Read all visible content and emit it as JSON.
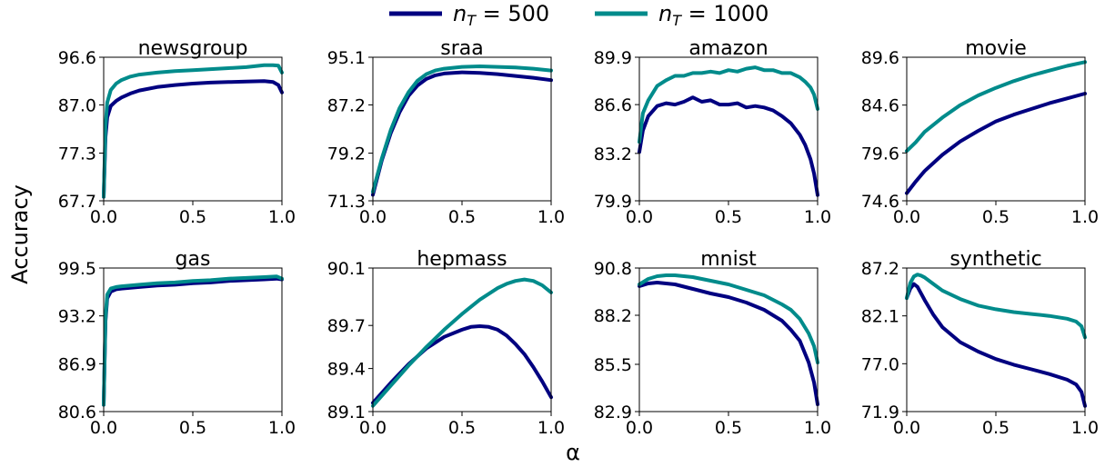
{
  "figure": {
    "ylabel": "Accuracy",
    "xlabel": "α",
    "legend": {
      "placement": "top-center",
      "entries": [
        {
          "prefix": "n",
          "sub": "T",
          "suffix": " = 500"
        },
        {
          "prefix": "n",
          "sub": "T",
          "suffix": " = 1000"
        }
      ]
    },
    "colors": {
      "n500": "#000080",
      "n1000": "#008b8b"
    }
  },
  "chart_data": [
    {
      "type": "line",
      "title": "newsgroup",
      "xlim": [
        0,
        1
      ],
      "ylim": [
        67.7,
        96.6
      ],
      "xticks": [
        "0.0",
        "0.5",
        "1.0"
      ],
      "yticks": [
        "67.7",
        "77.3",
        "87.0",
        "96.6"
      ],
      "series": [
        {
          "name": "n_T = 500",
          "color": "#000080",
          "x": [
            0,
            0.01,
            0.02,
            0.04,
            0.07,
            0.1,
            0.15,
            0.2,
            0.3,
            0.4,
            0.5,
            0.6,
            0.7,
            0.8,
            0.9,
            0.95,
            0.98,
            1.0
          ],
          "y": [
            68.5,
            80.5,
            84.5,
            86.8,
            87.8,
            88.5,
            89.3,
            89.9,
            90.6,
            91.0,
            91.3,
            91.5,
            91.6,
            91.7,
            91.8,
            91.6,
            91.0,
            89.5
          ]
        },
        {
          "name": "n_T = 1000",
          "color": "#008b8b",
          "x": [
            0,
            0.01,
            0.02,
            0.04,
            0.07,
            0.1,
            0.15,
            0.2,
            0.3,
            0.4,
            0.5,
            0.6,
            0.7,
            0.8,
            0.9,
            0.95,
            0.98,
            1.0
          ],
          "y": [
            68.5,
            82.5,
            87.5,
            90.0,
            91.3,
            92.0,
            92.7,
            93.1,
            93.5,
            93.8,
            94.0,
            94.2,
            94.4,
            94.6,
            95.0,
            95.0,
            94.9,
            93.5
          ]
        }
      ]
    },
    {
      "type": "line",
      "title": "sraa",
      "xlim": [
        0,
        1
      ],
      "ylim": [
        71.3,
        95.1
      ],
      "xticks": [
        "0.0",
        "0.5",
        "1.0"
      ],
      "yticks": [
        "71.3",
        "79.2",
        "87.2",
        "95.1"
      ],
      "series": [
        {
          "name": "n_T = 500",
          "color": "#000080",
          "x": [
            0,
            0.05,
            0.1,
            0.15,
            0.2,
            0.25,
            0.3,
            0.35,
            0.4,
            0.5,
            0.6,
            0.7,
            0.8,
            0.9,
            1.0
          ],
          "y": [
            72.3,
            78.0,
            82.5,
            86.0,
            88.7,
            90.4,
            91.5,
            92.1,
            92.4,
            92.6,
            92.5,
            92.3,
            92.0,
            91.7,
            91.3
          ]
        },
        {
          "name": "n_T = 1000",
          "color": "#008b8b",
          "x": [
            0,
            0.05,
            0.1,
            0.15,
            0.2,
            0.25,
            0.3,
            0.35,
            0.4,
            0.5,
            0.6,
            0.7,
            0.8,
            0.9,
            1.0
          ],
          "y": [
            72.8,
            78.3,
            83.0,
            86.7,
            89.3,
            91.2,
            92.3,
            92.9,
            93.2,
            93.5,
            93.6,
            93.5,
            93.4,
            93.2,
            92.9
          ]
        }
      ]
    },
    {
      "type": "line",
      "title": "amazon",
      "xlim": [
        0,
        1
      ],
      "ylim": [
        79.9,
        89.9
      ],
      "xticks": [
        "0.0",
        "0.5",
        "1.0"
      ],
      "yticks": [
        "79.9",
        "83.2",
        "86.6",
        "89.9"
      ],
      "series": [
        {
          "name": "n_T = 500",
          "color": "#000080",
          "x": [
            0,
            0.02,
            0.05,
            0.1,
            0.15,
            0.2,
            0.25,
            0.3,
            0.35,
            0.4,
            0.45,
            0.5,
            0.55,
            0.6,
            0.65,
            0.7,
            0.75,
            0.8,
            0.85,
            0.9,
            0.93,
            0.96,
            0.98,
            1.0
          ],
          "y": [
            83.3,
            84.8,
            85.8,
            86.5,
            86.7,
            86.6,
            86.8,
            87.1,
            86.8,
            86.9,
            86.6,
            86.6,
            86.7,
            86.4,
            86.5,
            86.4,
            86.2,
            85.8,
            85.3,
            84.5,
            83.8,
            82.8,
            81.8,
            80.3
          ]
        },
        {
          "name": "n_T = 1000",
          "color": "#008b8b",
          "x": [
            0,
            0.02,
            0.05,
            0.1,
            0.15,
            0.2,
            0.25,
            0.3,
            0.35,
            0.4,
            0.45,
            0.5,
            0.55,
            0.6,
            0.65,
            0.7,
            0.75,
            0.8,
            0.85,
            0.9,
            0.93,
            0.96,
            0.98,
            1.0
          ],
          "y": [
            84.0,
            86.0,
            86.9,
            87.9,
            88.3,
            88.6,
            88.6,
            88.8,
            88.8,
            88.9,
            88.8,
            89.0,
            88.9,
            89.1,
            89.2,
            89.0,
            89.0,
            88.8,
            88.8,
            88.5,
            88.2,
            87.8,
            87.3,
            86.3
          ]
        }
      ]
    },
    {
      "type": "line",
      "title": "movie",
      "xlim": [
        0,
        1
      ],
      "ylim": [
        74.6,
        89.6
      ],
      "xticks": [
        "0.0",
        "0.5",
        "1.0"
      ],
      "yticks": [
        "74.6",
        "79.6",
        "84.6",
        "89.6"
      ],
      "series": [
        {
          "name": "n_T = 500",
          "color": "#000080",
          "x": [
            0,
            0.05,
            0.1,
            0.2,
            0.3,
            0.4,
            0.5,
            0.6,
            0.7,
            0.8,
            0.9,
            1.0
          ],
          "y": [
            75.4,
            76.6,
            77.7,
            79.4,
            80.8,
            81.9,
            82.9,
            83.6,
            84.2,
            84.8,
            85.3,
            85.8
          ]
        },
        {
          "name": "n_T = 1000",
          "color": "#008b8b",
          "x": [
            0,
            0.05,
            0.1,
            0.2,
            0.3,
            0.4,
            0.5,
            0.6,
            0.7,
            0.8,
            0.9,
            1.0
          ],
          "y": [
            79.8,
            80.7,
            81.8,
            83.3,
            84.6,
            85.6,
            86.4,
            87.1,
            87.7,
            88.2,
            88.7,
            89.1
          ]
        }
      ]
    },
    {
      "type": "line",
      "title": "gas",
      "xlim": [
        0,
        1
      ],
      "ylim": [
        80.6,
        99.5
      ],
      "xticks": [
        "0.0",
        "0.5",
        "1.0"
      ],
      "yticks": [
        "80.6",
        "86.9",
        "93.2",
        "99.5"
      ],
      "series": [
        {
          "name": "n_T = 500",
          "color": "#000080",
          "x": [
            0,
            0.01,
            0.02,
            0.04,
            0.07,
            0.1,
            0.2,
            0.3,
            0.4,
            0.5,
            0.6,
            0.7,
            0.8,
            0.9,
            0.97,
            1.0
          ],
          "y": [
            81.5,
            92.5,
            95.5,
            96.4,
            96.7,
            96.8,
            97.0,
            97.2,
            97.3,
            97.5,
            97.6,
            97.8,
            97.9,
            98.0,
            98.1,
            98.0
          ]
        },
        {
          "name": "n_T = 1000",
          "color": "#008b8b",
          "x": [
            0,
            0.01,
            0.02,
            0.04,
            0.07,
            0.1,
            0.2,
            0.3,
            0.4,
            0.5,
            0.6,
            0.7,
            0.8,
            0.9,
            0.97,
            1.0
          ],
          "y": [
            81.5,
            93.0,
            96.0,
            96.8,
            97.0,
            97.1,
            97.3,
            97.5,
            97.6,
            97.8,
            97.9,
            98.1,
            98.2,
            98.3,
            98.4,
            98.1
          ]
        }
      ]
    },
    {
      "type": "line",
      "title": "hepmass",
      "xlim": [
        0,
        1
      ],
      "ylim": [
        89.1,
        90.1
      ],
      "xticks": [
        "0.0",
        "0.5",
        "1.0"
      ],
      "yticks": [
        "89.1",
        "89.4",
        "89.7",
        "90.1"
      ],
      "series": [
        {
          "name": "n_T = 500",
          "color": "#000080",
          "x": [
            0,
            0.1,
            0.2,
            0.3,
            0.4,
            0.5,
            0.55,
            0.6,
            0.65,
            0.7,
            0.75,
            0.8,
            0.85,
            0.9,
            0.95,
            1.0
          ],
          "y": [
            89.16,
            89.3,
            89.43,
            89.54,
            89.62,
            89.67,
            89.69,
            89.695,
            89.69,
            89.67,
            89.63,
            89.57,
            89.5,
            89.41,
            89.31,
            89.2
          ]
        },
        {
          "name": "n_T = 1000",
          "color": "#008b8b",
          "x": [
            0,
            0.1,
            0.2,
            0.3,
            0.4,
            0.5,
            0.6,
            0.7,
            0.75,
            0.8,
            0.85,
            0.9,
            0.95,
            1.0
          ],
          "y": [
            89.14,
            89.28,
            89.42,
            89.55,
            89.67,
            89.78,
            89.88,
            89.96,
            89.99,
            90.01,
            90.02,
            90.01,
            89.98,
            89.93
          ]
        }
      ]
    },
    {
      "type": "line",
      "title": "mnist",
      "xlim": [
        0,
        1
      ],
      "ylim": [
        82.9,
        90.8
      ],
      "xticks": [
        "0.0",
        "0.5",
        "1.0"
      ],
      "yticks": [
        "82.9",
        "85.5",
        "88.2",
        "90.8"
      ],
      "series": [
        {
          "name": "n_T = 500",
          "color": "#000080",
          "x": [
            0,
            0.05,
            0.1,
            0.2,
            0.3,
            0.4,
            0.5,
            0.6,
            0.7,
            0.8,
            0.85,
            0.9,
            0.95,
            0.98,
            1.0
          ],
          "y": [
            89.8,
            89.95,
            90.0,
            89.9,
            89.65,
            89.4,
            89.2,
            88.9,
            88.5,
            87.9,
            87.4,
            86.8,
            85.6,
            84.5,
            83.3
          ]
        },
        {
          "name": "n_T = 1000",
          "color": "#008b8b",
          "x": [
            0,
            0.05,
            0.1,
            0.15,
            0.2,
            0.3,
            0.4,
            0.5,
            0.6,
            0.7,
            0.8,
            0.85,
            0.9,
            0.95,
            0.98,
            1.0
          ],
          "y": [
            89.9,
            90.2,
            90.35,
            90.4,
            90.4,
            90.3,
            90.1,
            89.9,
            89.6,
            89.3,
            88.8,
            88.5,
            88.0,
            87.2,
            86.5,
            85.6
          ]
        }
      ]
    },
    {
      "type": "line",
      "title": "synthetic",
      "xlim": [
        0,
        1
      ],
      "ylim": [
        71.9,
        87.2
      ],
      "xticks": [
        "0.0",
        "0.5",
        "1.0"
      ],
      "yticks": [
        "71.9",
        "77.0",
        "82.1",
        "87.2"
      ],
      "series": [
        {
          "name": "n_T = 500",
          "color": "#000080",
          "x": [
            0,
            0.02,
            0.04,
            0.06,
            0.1,
            0.15,
            0.2,
            0.3,
            0.4,
            0.5,
            0.6,
            0.7,
            0.8,
            0.9,
            0.95,
            0.98,
            1.0
          ],
          "y": [
            84.0,
            85.0,
            85.5,
            85.2,
            83.8,
            82.2,
            80.9,
            79.3,
            78.3,
            77.5,
            76.9,
            76.4,
            75.9,
            75.3,
            74.8,
            74.0,
            72.5
          ]
        },
        {
          "name": "n_T = 1000",
          "color": "#008b8b",
          "x": [
            0,
            0.02,
            0.04,
            0.06,
            0.08,
            0.1,
            0.15,
            0.2,
            0.3,
            0.4,
            0.5,
            0.6,
            0.7,
            0.8,
            0.9,
            0.95,
            0.98,
            1.0
          ],
          "y": [
            84.0,
            85.6,
            86.3,
            86.5,
            86.4,
            86.2,
            85.5,
            84.8,
            83.9,
            83.2,
            82.8,
            82.5,
            82.3,
            82.1,
            81.8,
            81.5,
            81.0,
            79.8
          ]
        }
      ]
    }
  ]
}
